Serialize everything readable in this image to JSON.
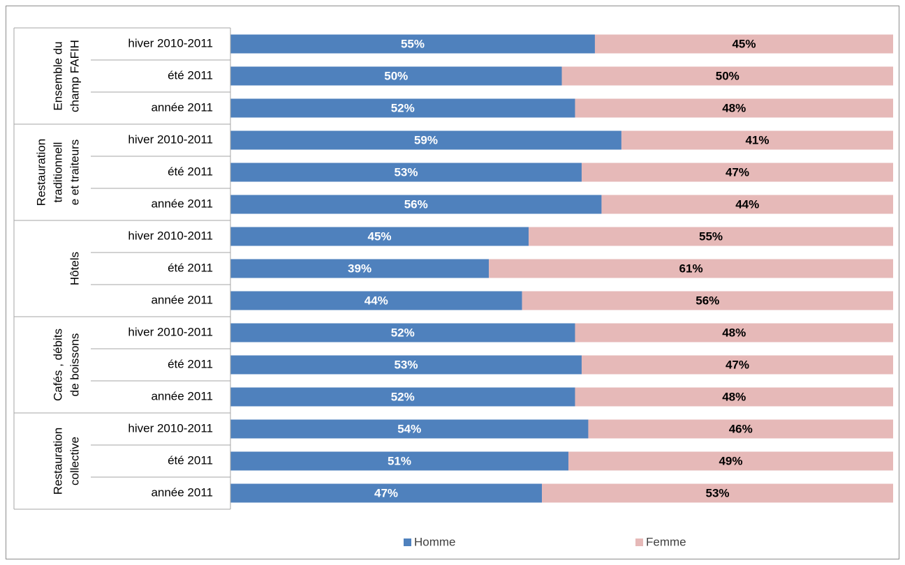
{
  "chart_data": {
    "type": "stacked_barh",
    "groups": [
      {
        "label": [
          "Ensemble du",
          "champ FAFIH"
        ],
        "categories": [
          "hiver 2010-2011",
          "été 2011",
          "année 2011"
        ]
      },
      {
        "label": [
          "Restauration",
          "traditionnell",
          "e et traiteurs"
        ],
        "categories": [
          "hiver 2010-2011",
          "été 2011",
          "année 2011"
        ]
      },
      {
        "label": [
          "Hôtels"
        ],
        "categories": [
          "hiver 2010-2011",
          "été 2011",
          "année 2011"
        ]
      },
      {
        "label": [
          "Cafés , débits",
          "de boissons"
        ],
        "categories": [
          "hiver 2010-2011",
          "été 2011",
          "année 2011"
        ]
      },
      {
        "label": [
          "Restauration",
          "collective"
        ],
        "categories": [
          "hiver 2010-2011",
          "été 2011",
          "année 2011"
        ]
      }
    ],
    "series": [
      {
        "name": "Homme",
        "color": "#4f81bd",
        "label_color": "#ffffff",
        "values": [
          55,
          50,
          52,
          59,
          53,
          56,
          45,
          39,
          44,
          52,
          53,
          52,
          54,
          51,
          47
        ],
        "value_labels": [
          "55%",
          "50%",
          "52%",
          "59%",
          "53%",
          "56%",
          "45%",
          "39%",
          "44%",
          "52%",
          "53%",
          "52%",
          "54%",
          "51%",
          "47%"
        ]
      },
      {
        "name": "Femme",
        "color": "#e6b9b8",
        "label_color": "#000000",
        "values": [
          45,
          50,
          48,
          41,
          47,
          44,
          55,
          61,
          56,
          48,
          47,
          48,
          46,
          49,
          53
        ],
        "value_labels": [
          "45%",
          "50%",
          "48%",
          "41%",
          "47%",
          "44%",
          "55%",
          "61%",
          "56%",
          "48%",
          "47%",
          "48%",
          "46%",
          "49%",
          "53%"
        ]
      }
    ],
    "xlim": [
      0,
      100
    ],
    "legend": "bottom"
  }
}
